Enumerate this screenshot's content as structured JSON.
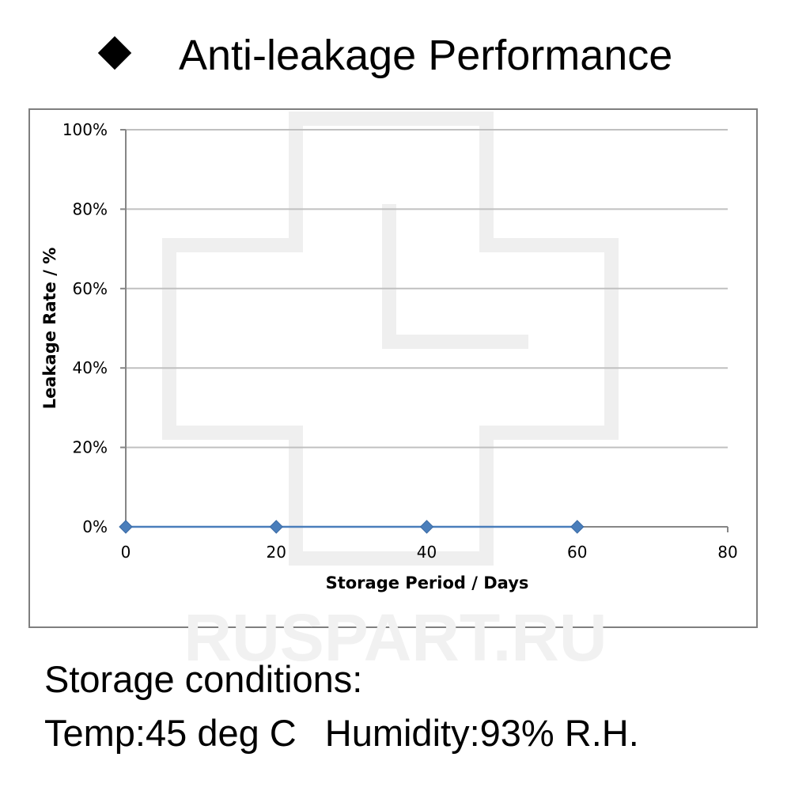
{
  "header": {
    "title": "Anti-leakage Performance",
    "bullet_icon": "diamond-bullet-icon"
  },
  "chart_data": {
    "type": "line",
    "title": "",
    "xlabel": "Storage Period / Days",
    "ylabel": "Leakage Rate / %",
    "x_ticks": [
      "0",
      "20",
      "40",
      "60",
      "80"
    ],
    "y_ticks": [
      "0%",
      "20%",
      "40%",
      "60%",
      "80%",
      "100%"
    ],
    "xlim": [
      0,
      80
    ],
    "ylim": [
      0,
      100
    ],
    "grid": true,
    "series": [
      {
        "x": [
          0,
          20,
          40,
          60
        ],
        "y": [
          0,
          0,
          0,
          0
        ],
        "color": "#4a7ebb",
        "marker": "diamond"
      }
    ]
  },
  "watermark": {
    "text": "RUSPART.RU"
  },
  "footer": {
    "line1": "Storage conditions:",
    "temp": "Temp:45 deg C",
    "humidity": "Humidity:93% R.H."
  }
}
